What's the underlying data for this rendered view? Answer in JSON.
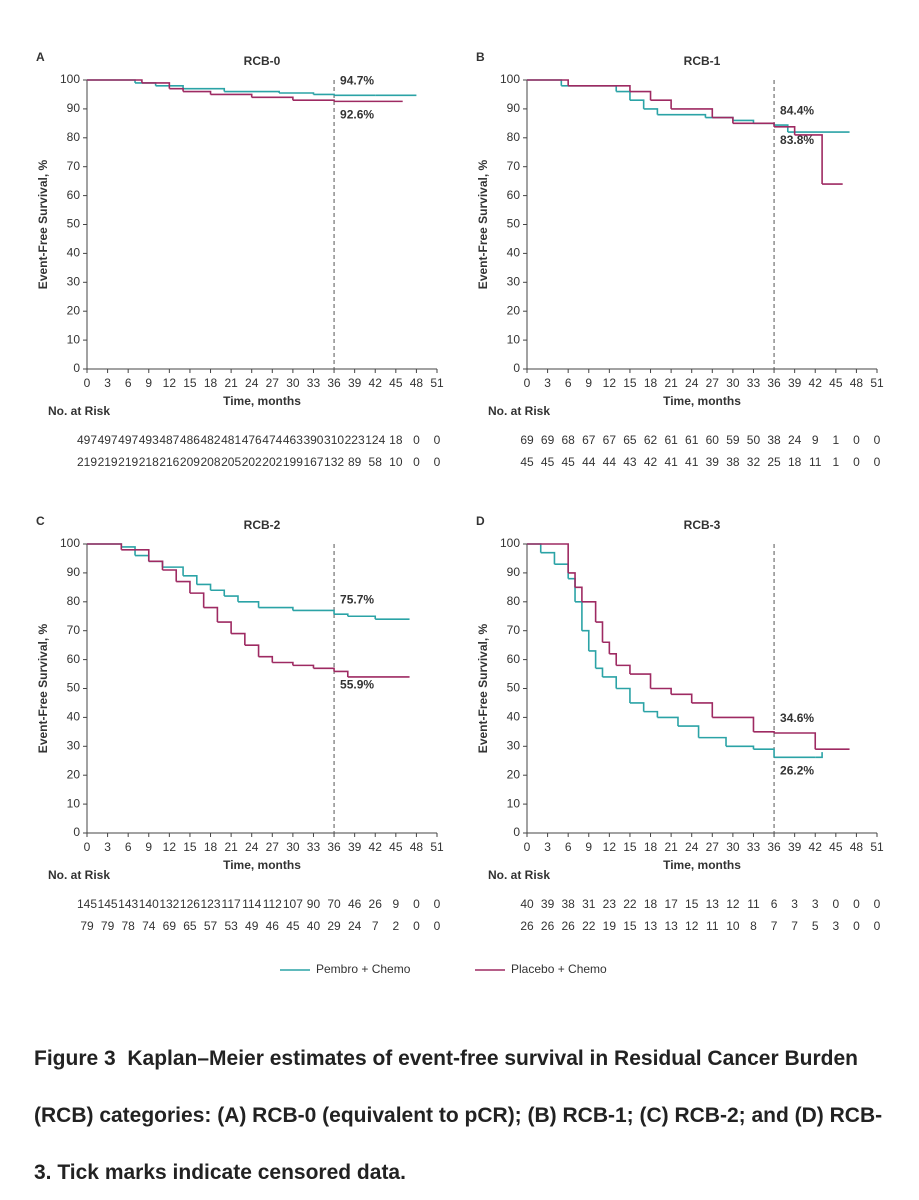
{
  "chart_data": [
    {
      "type": "step",
      "panel": "A",
      "title": "RCB-0",
      "xlabel": "Time, months",
      "ylabel": "Event-Free Survival, %",
      "xlim": [
        0,
        51
      ],
      "xticks": [
        0,
        3,
        6,
        9,
        12,
        15,
        18,
        21,
        24,
        27,
        30,
        33,
        36,
        39,
        42,
        45,
        48,
        51
      ],
      "ylim": [
        0,
        100
      ],
      "yticks": [
        0,
        10,
        20,
        30,
        40,
        50,
        60,
        70,
        80,
        90,
        100
      ],
      "reference_x": 36,
      "risk_label": "No. at Risk",
      "series": [
        {
          "name": "Pembro + Chemo",
          "color": "#2ba3a6",
          "x": [
            0,
            7,
            10,
            14,
            20,
            28,
            33,
            36,
            42,
            48
          ],
          "values": [
            100,
            99,
            98,
            97,
            96,
            95.5,
            95,
            94.7,
            94.7,
            94.7
          ],
          "at_risk": [
            497,
            497,
            497,
            493,
            487,
            486,
            482,
            481,
            476,
            474,
            463,
            390,
            310,
            223,
            124,
            18,
            0,
            0
          ]
        },
        {
          "name": "Placebo + Chemo",
          "color": "#9e2a62",
          "x": [
            0,
            8,
            12,
            14,
            18,
            24,
            30,
            36,
            46
          ],
          "values": [
            100,
            99,
            97,
            96,
            95,
            94,
            93,
            92.6,
            92.6
          ],
          "at_risk": [
            219,
            219,
            219,
            218,
            216,
            209,
            208,
            205,
            202,
            202,
            199,
            167,
            132,
            89,
            58,
            10,
            0,
            0
          ]
        }
      ],
      "annotations": [
        {
          "x": 36,
          "y": 94.7,
          "label": "94.7%",
          "color": "#2ba3a6",
          "place": "above"
        },
        {
          "x": 36,
          "y": 92.6,
          "label": "92.6%",
          "color": "#9e2a62",
          "place": "below"
        }
      ]
    },
    {
      "type": "step",
      "panel": "B",
      "title": "RCB-1",
      "xlabel": "Time, months",
      "ylabel": "Event-Free Survival, %",
      "xlim": [
        0,
        51
      ],
      "xticks": [
        0,
        3,
        6,
        9,
        12,
        15,
        18,
        21,
        24,
        27,
        30,
        33,
        36,
        39,
        42,
        45,
        48,
        51
      ],
      "ylim": [
        0,
        100
      ],
      "yticks": [
        0,
        10,
        20,
        30,
        40,
        50,
        60,
        70,
        80,
        90,
        100
      ],
      "reference_x": 36,
      "risk_label": "No. at Risk",
      "series": [
        {
          "name": "Pembro + Chemo",
          "color": "#2ba3a6",
          "x": [
            0,
            5,
            13,
            15,
            17,
            19,
            26,
            30,
            33,
            36,
            38,
            47
          ],
          "values": [
            100,
            98,
            96,
            93,
            90,
            88,
            87,
            86,
            85,
            84.4,
            82,
            82
          ],
          "at_risk": [
            69,
            69,
            68,
            67,
            67,
            65,
            62,
            61,
            61,
            60,
            59,
            50,
            38,
            24,
            9,
            1,
            0,
            0
          ]
        },
        {
          "name": "Placebo + Chemo",
          "color": "#9e2a62",
          "x": [
            0,
            6,
            15,
            18,
            21,
            27,
            30,
            36,
            39,
            43,
            46
          ],
          "values": [
            100,
            98,
            96,
            93,
            90,
            87,
            85,
            83.8,
            81,
            64,
            64
          ],
          "at_risk": [
            45,
            45,
            45,
            44,
            44,
            43,
            42,
            41,
            41,
            39,
            38,
            32,
            25,
            18,
            11,
            1,
            0,
            0
          ]
        }
      ],
      "annotations": [
        {
          "x": 36,
          "y": 84.4,
          "label": "84.4%",
          "color": "#2ba3a6",
          "place": "above"
        },
        {
          "x": 36,
          "y": 83.8,
          "label": "83.8%",
          "color": "#9e2a62",
          "place": "below"
        }
      ]
    },
    {
      "type": "step",
      "panel": "C",
      "title": "RCB-2",
      "xlabel": "Time, months",
      "ylabel": "Event-Free Survival, %",
      "xlim": [
        0,
        51
      ],
      "xticks": [
        0,
        3,
        6,
        9,
        12,
        15,
        18,
        21,
        24,
        27,
        30,
        33,
        36,
        39,
        42,
        45,
        48,
        51
      ],
      "ylim": [
        0,
        100
      ],
      "yticks": [
        0,
        10,
        20,
        30,
        40,
        50,
        60,
        70,
        80,
        90,
        100
      ],
      "reference_x": 36,
      "risk_label": "No. at Risk",
      "series": [
        {
          "name": "Pembro + Chemo",
          "color": "#2ba3a6",
          "x": [
            0,
            5,
            7,
            9,
            11,
            14,
            16,
            18,
            20,
            22,
            25,
            30,
            36,
            38,
            42,
            47
          ],
          "values": [
            100,
            99,
            96,
            94,
            92,
            89,
            86,
            84,
            82,
            80,
            78,
            77,
            75.7,
            75,
            74,
            74
          ],
          "at_risk": [
            145,
            145,
            143,
            140,
            132,
            126,
            123,
            117,
            114,
            112,
            107,
            90,
            70,
            46,
            26,
            9,
            0,
            0
          ]
        },
        {
          "name": "Placebo + Chemo",
          "color": "#9e2a62",
          "x": [
            0,
            5,
            9,
            11,
            13,
            15,
            17,
            19,
            21,
            23,
            25,
            27,
            30,
            33,
            36,
            38,
            47
          ],
          "values": [
            100,
            98,
            94,
            91,
            87,
            83,
            78,
            73,
            69,
            65,
            61,
            59,
            58,
            57,
            55.9,
            54,
            54
          ],
          "at_risk": [
            79,
            79,
            78,
            74,
            69,
            65,
            57,
            53,
            49,
            46,
            45,
            40,
            29,
            24,
            7,
            2,
            0,
            0
          ]
        }
      ],
      "annotations": [
        {
          "x": 36,
          "y": 75.7,
          "label": "75.7%",
          "color": "#2ba3a6",
          "place": "above"
        },
        {
          "x": 36,
          "y": 55.9,
          "label": "55.9%",
          "color": "#9e2a62",
          "place": "below"
        }
      ]
    },
    {
      "type": "step",
      "panel": "D",
      "title": "RCB-3",
      "xlabel": "Time, months",
      "ylabel": "Event-Free Survival, %",
      "xlim": [
        0,
        51
      ],
      "xticks": [
        0,
        3,
        6,
        9,
        12,
        15,
        18,
        21,
        24,
        27,
        30,
        33,
        36,
        39,
        42,
        45,
        48,
        51
      ],
      "ylim": [
        0,
        100
      ],
      "yticks": [
        0,
        10,
        20,
        30,
        40,
        50,
        60,
        70,
        80,
        90,
        100
      ],
      "reference_x": 36,
      "risk_label": "No. at Risk",
      "series": [
        {
          "name": "Pembro + Chemo",
          "color": "#2ba3a6",
          "x": [
            0,
            2,
            4,
            6,
            7,
            8,
            9,
            10,
            11,
            13,
            15,
            17,
            19,
            22,
            25,
            29,
            33,
            36,
            42,
            43
          ],
          "values": [
            100,
            97,
            93,
            88,
            80,
            70,
            63,
            57,
            54,
            50,
            45,
            42,
            40,
            37,
            33,
            30,
            29,
            26.2,
            26.2,
            28
          ],
          "at_risk": [
            40,
            39,
            38,
            31,
            23,
            22,
            18,
            17,
            15,
            13,
            12,
            11,
            6,
            3,
            3,
            0,
            0,
            0
          ]
        },
        {
          "name": "Placebo + Chemo",
          "color": "#9e2a62",
          "x": [
            0,
            6,
            7,
            8,
            10,
            11,
            12,
            13,
            15,
            18,
            21,
            24,
            27,
            33,
            36,
            42,
            47
          ],
          "values": [
            100,
            90,
            85,
            80,
            73,
            66,
            62,
            58,
            55,
            50,
            48,
            45,
            40,
            35,
            34.6,
            29,
            29
          ],
          "at_risk": [
            26,
            26,
            26,
            22,
            19,
            15,
            13,
            13,
            12,
            11,
            10,
            8,
            7,
            7,
            5,
            3,
            0,
            0
          ]
        }
      ],
      "annotations": [
        {
          "x": 36,
          "y": 34.6,
          "label": "34.6%",
          "color": "#9e2a62",
          "place": "above"
        },
        {
          "x": 36,
          "y": 26.2,
          "label": "26.2%",
          "color": "#2ba3a6",
          "place": "below"
        }
      ]
    }
  ],
  "caption": {
    "label": "Figure 3",
    "text": "Kaplan–Meier estimates of event-free survival in Residual Cancer Burden (RCB) categories: (A) RCB-0 (equivalent to pCR); (B) RCB-1; (C) RCB-2; and (D) RCB-3. Tick marks indicate censored data."
  }
}
